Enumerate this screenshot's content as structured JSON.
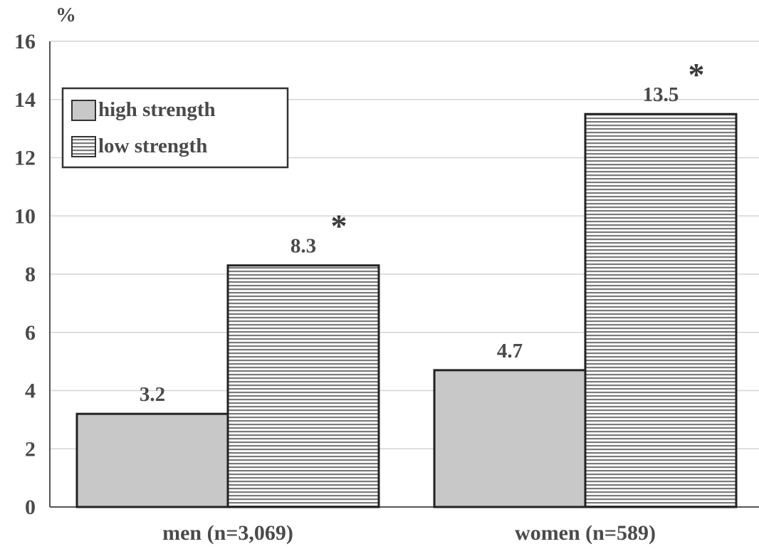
{
  "chart_data": {
    "type": "bar",
    "title": "",
    "xlabel": "",
    "ylabel": "%",
    "ylim": [
      0,
      16
    ],
    "yticks": [
      0,
      2,
      4,
      6,
      8,
      10,
      12,
      14,
      16
    ],
    "grid": true,
    "legend_position": "top-left",
    "categories": [
      "men (n=3,069)",
      "women (n=589)"
    ],
    "series": [
      {
        "name": "high strength",
        "values": [
          3.2,
          4.7
        ],
        "labels": [
          "3.2",
          "4.7"
        ],
        "fill": "#c8c8c8",
        "pattern": "solid",
        "significant": [
          false,
          false
        ]
      },
      {
        "name": "low strength",
        "values": [
          8.3,
          13.5
        ],
        "labels": [
          "8.3",
          "13.5"
        ],
        "fill": "#ffffff",
        "pattern": "horizontal-stripes",
        "significant": [
          true,
          true
        ]
      }
    ],
    "significance_marker": "*"
  }
}
